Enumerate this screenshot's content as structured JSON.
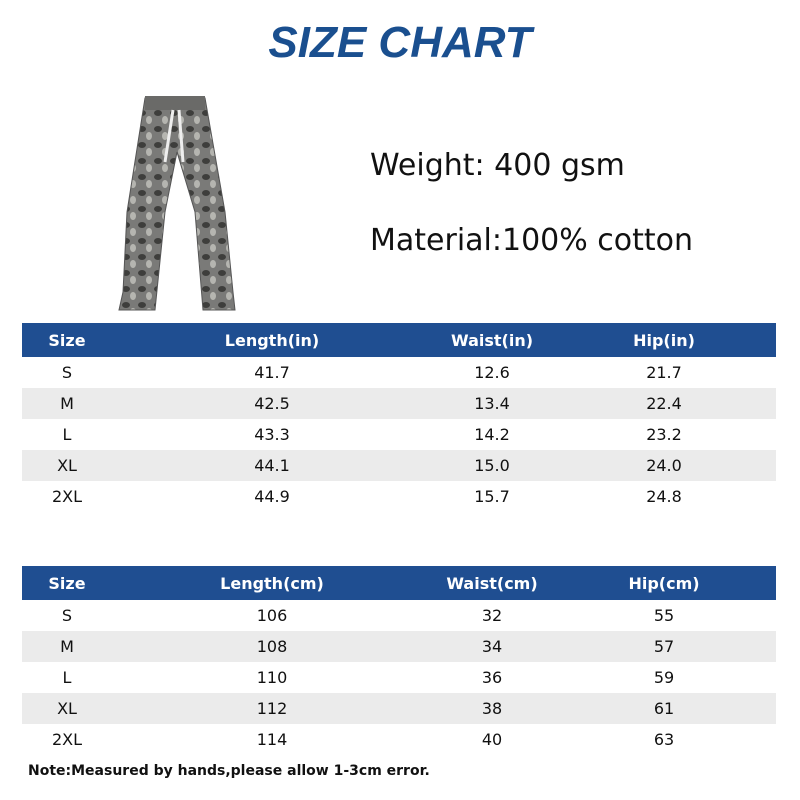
{
  "header": {
    "title": "SIZE CHART"
  },
  "specs": {
    "weight": "Weight: 400 gsm",
    "material": "Material:100% cotton"
  },
  "tables": [
    {
      "columns": [
        "Size",
        "Length(in)",
        "Waist(in)",
        "Hip(in)"
      ],
      "rows": [
        [
          "S",
          "41.7",
          "12.6",
          "21.7"
        ],
        [
          "M",
          "42.5",
          "13.4",
          "22.4"
        ],
        [
          "L",
          "43.3",
          "14.2",
          "23.2"
        ],
        [
          "XL",
          "44.1",
          "15.0",
          "24.0"
        ],
        [
          "2XL",
          "44.9",
          "15.7",
          "24.8"
        ]
      ]
    },
    {
      "columns": [
        "Size",
        "Length(cm)",
        "Waist(cm)",
        "Hip(cm)"
      ],
      "rows": [
        [
          "S",
          "106",
          "32",
          "55"
        ],
        [
          "M",
          "108",
          "34",
          "57"
        ],
        [
          "L",
          "110",
          "36",
          "59"
        ],
        [
          "XL",
          "112",
          "38",
          "61"
        ],
        [
          "2XL",
          "114",
          "40",
          "63"
        ]
      ]
    }
  ],
  "note": "Note:Measured by hands,please allow 1-3cm error."
}
